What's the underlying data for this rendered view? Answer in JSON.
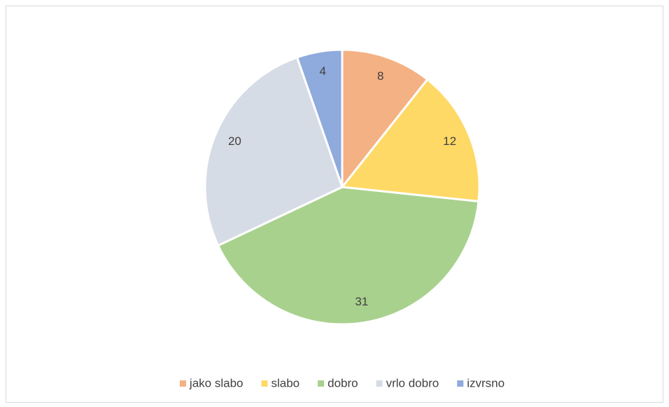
{
  "chart_data": {
    "type": "pie",
    "categories": [
      "jako slabo",
      "slabo",
      "dobro",
      "vrlo dobro",
      "izvrsno"
    ],
    "values": [
      8,
      12,
      31,
      20,
      4
    ],
    "colors": [
      "#f4b183",
      "#ffd966",
      "#a9d18e",
      "#d6dce5",
      "#8faadc"
    ],
    "legend": "bottom"
  }
}
